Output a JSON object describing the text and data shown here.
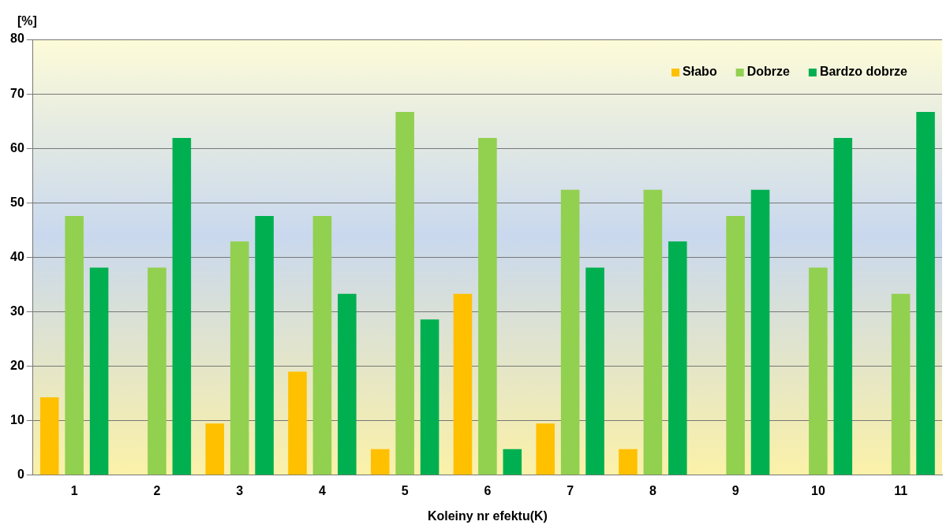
{
  "chart_data": {
    "type": "bar",
    "ylabel": "[%]",
    "xlabel": "Koleiny nr efektu(K)",
    "categories": [
      "1",
      "2",
      "3",
      "4",
      "5",
      "6",
      "7",
      "8",
      "9",
      "10",
      "11"
    ],
    "series": [
      {
        "name": "Słabo",
        "color": "#ffc000",
        "values": [
          14.3,
          0,
          9.5,
          19.0,
          4.8,
          33.3,
          9.5,
          4.8,
          0,
          0,
          0
        ]
      },
      {
        "name": "Dobrze",
        "color": "#92d050",
        "values": [
          47.6,
          38.1,
          42.9,
          47.6,
          66.7,
          61.9,
          52.4,
          52.4,
          47.6,
          38.1,
          33.3
        ]
      },
      {
        "name": "Bardzo dobrze",
        "color": "#00b050",
        "values": [
          38.1,
          61.9,
          47.6,
          33.3,
          28.6,
          4.8,
          38.1,
          42.9,
          52.4,
          61.9,
          66.7
        ]
      }
    ],
    "ylim": [
      0,
      80
    ],
    "yticks": [
      0,
      10,
      20,
      30,
      40,
      50,
      60,
      70,
      80
    ],
    "grid": "y",
    "legend": "top right"
  }
}
